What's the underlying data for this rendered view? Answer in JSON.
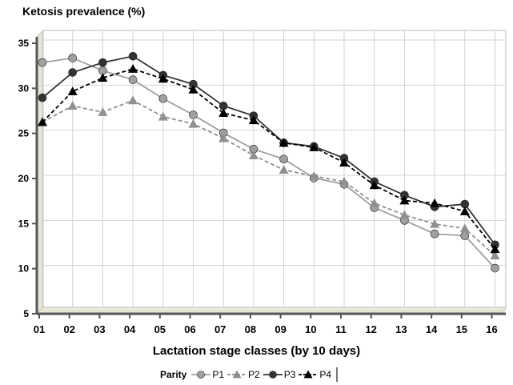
{
  "chart_data": {
    "type": "line",
    "title": "",
    "ylabel": "Ketosis prevalence (%)",
    "xlabel": "Lactation stage classes (by 10 days)",
    "categories": [
      "01",
      "02",
      "03",
      "04",
      "05",
      "06",
      "07",
      "08",
      "09",
      "10",
      "11",
      "12",
      "13",
      "14",
      "15",
      "16"
    ],
    "yticks": [
      5,
      10,
      15,
      20,
      25,
      30,
      35
    ],
    "ylim": [
      5,
      35
    ],
    "grid": true,
    "legend": {
      "title": "Parity",
      "position": "bottom"
    },
    "series": [
      {
        "name": "P1",
        "marker": "circle",
        "dashed": false,
        "color": "#a0a0a0",
        "values": [
          32.5,
          33.0,
          31.6,
          30.6,
          28.5,
          26.7,
          24.7,
          22.9,
          21.8,
          19.7,
          19.0,
          16.4,
          15.0,
          13.5,
          13.3,
          9.7
        ]
      },
      {
        "name": "P2",
        "marker": "triangle",
        "dashed": true,
        "color": "#909090",
        "values": [
          25.9,
          27.7,
          27.0,
          28.3,
          26.5,
          25.7,
          24.1,
          22.2,
          20.6,
          19.9,
          19.3,
          16.9,
          15.6,
          14.6,
          14.1,
          11.1
        ]
      },
      {
        "name": "P3",
        "marker": "circle",
        "dashed": false,
        "color": "#333333",
        "values": [
          28.6,
          31.4,
          32.5,
          33.2,
          31.1,
          30.1,
          27.7,
          26.6,
          23.6,
          23.2,
          21.9,
          19.3,
          17.8,
          16.5,
          16.8,
          12.3
        ]
      },
      {
        "name": "P4",
        "marker": "triangle",
        "dashed": true,
        "color": "#000000",
        "values": [
          25.9,
          29.3,
          30.8,
          31.8,
          30.7,
          29.5,
          26.9,
          26.1,
          23.6,
          23.1,
          21.4,
          18.9,
          17.2,
          16.9,
          16.0,
          11.8
        ]
      }
    ]
  }
}
